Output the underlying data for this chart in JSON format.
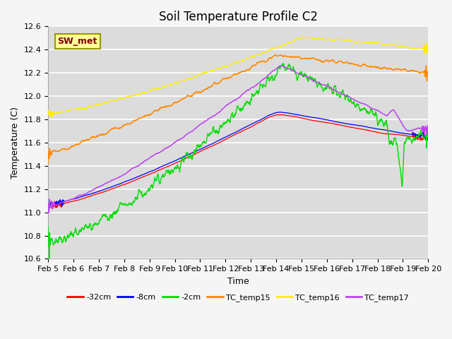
{
  "title": "Soil Temperature Profile C2",
  "xlabel": "Time",
  "ylabel": "Temperature (C)",
  "ylim": [
    10.6,
    12.6
  ],
  "x_tick_labels": [
    "Feb 5",
    "Feb 6",
    "Feb 7",
    "Feb 8",
    "Feb 9",
    "Feb 10",
    "Feb 11",
    "Feb 12",
    "Feb 13",
    "Feb 14",
    "Feb 15",
    "Feb 16",
    "Feb 17",
    "Feb 18",
    "Feb 19",
    "Feb 20"
  ],
  "legend_label": "SW_met",
  "series": {
    "neg32cm": {
      "label": "-32cm",
      "color": "#ff0000"
    },
    "neg8cm": {
      "label": "-8cm",
      "color": "#0000ff"
    },
    "neg2cm": {
      "label": "-2cm",
      "color": "#00dd00"
    },
    "TC_temp15": {
      "label": "TC_temp15",
      "color": "#ff8800"
    },
    "TC_temp16": {
      "label": "TC_temp16",
      "color": "#ffee00"
    },
    "TC_temp17": {
      "label": "TC_temp17",
      "color": "#bb44ee"
    }
  },
  "bg_color": "#dcdcdc",
  "grid_color": "#ffffff",
  "title_fontsize": 12,
  "axis_fontsize": 9,
  "tick_fontsize": 8,
  "label_box_facecolor": "#ffff99",
  "label_box_edgecolor": "#999900",
  "label_text_color": "#880000"
}
